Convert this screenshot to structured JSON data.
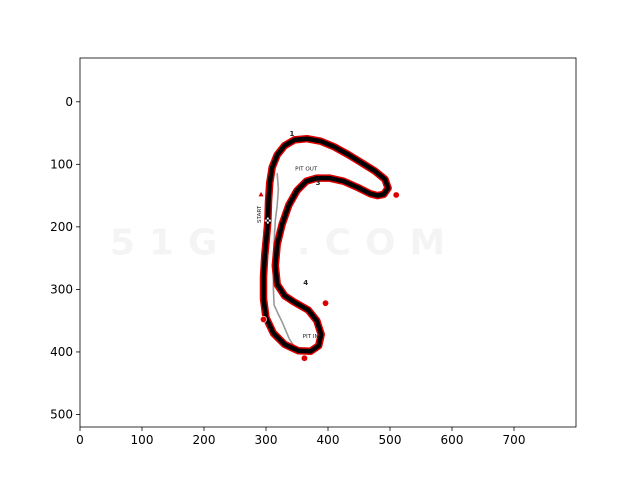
{
  "chart_data": {
    "type": "image",
    "xlim": [
      0,
      800
    ],
    "ylim": [
      520,
      -70
    ],
    "x_ticks": [
      0,
      100,
      200,
      300,
      400,
      500,
      600,
      700
    ],
    "y_ticks": [
      0,
      100,
      200,
      300,
      400,
      500
    ],
    "grid": false,
    "image_content": {
      "watermark_text": "51G 3.COM",
      "track_labels": [
        {
          "text": "1",
          "x": 338,
          "y": 55
        },
        {
          "text": "PIT OUT",
          "x": 347,
          "y": 110
        },
        {
          "text": "3",
          "x": 380,
          "y": 133
        },
        {
          "text": "START",
          "x": 292,
          "y": 180
        },
        {
          "text": "4",
          "x": 360,
          "y": 293
        },
        {
          "text": "PIT IN",
          "x": 359,
          "y": 378
        }
      ],
      "track_centerline": [
        [
          303,
          190
        ],
        [
          301,
          215
        ],
        [
          298,
          245
        ],
        [
          296,
          280
        ],
        [
          296,
          315
        ],
        [
          300,
          345
        ],
        [
          312,
          370
        ],
        [
          330,
          388
        ],
        [
          352,
          398
        ],
        [
          372,
          399
        ],
        [
          385,
          390
        ],
        [
          389,
          372
        ],
        [
          382,
          350
        ],
        [
          368,
          333
        ],
        [
          345,
          320
        ],
        [
          330,
          310
        ],
        [
          318,
          292
        ],
        [
          315,
          262
        ],
        [
          318,
          228
        ],
        [
          326,
          196
        ],
        [
          337,
          165
        ],
        [
          350,
          142
        ],
        [
          365,
          127
        ],
        [
          382,
          122
        ],
        [
          402,
          122
        ],
        [
          425,
          127
        ],
        [
          448,
          137
        ],
        [
          468,
          147
        ],
        [
          480,
          150
        ],
        [
          490,
          148
        ],
        [
          497,
          138
        ],
        [
          492,
          124
        ],
        [
          476,
          111
        ],
        [
          455,
          98
        ],
        [
          432,
          84
        ],
        [
          410,
          72
        ],
        [
          388,
          63
        ],
        [
          366,
          59
        ],
        [
          346,
          61
        ],
        [
          330,
          70
        ],
        [
          318,
          85
        ],
        [
          310,
          105
        ],
        [
          306,
          130
        ],
        [
          304,
          160
        ]
      ],
      "pit_lane": [
        [
          318,
          115
        ],
        [
          320,
          140
        ],
        [
          318,
          165
        ],
        [
          315,
          190
        ],
        [
          313,
          225
        ],
        [
          312,
          265
        ],
        [
          312,
          300
        ],
        [
          313,
          325
        ],
        [
          320,
          340
        ],
        [
          326,
          352
        ],
        [
          332,
          366
        ],
        [
          338,
          380
        ],
        [
          345,
          390
        ]
      ],
      "corner_markers": [
        {
          "x": 510,
          "y": 149
        },
        {
          "x": 396,
          "y": 322
        },
        {
          "x": 296,
          "y": 348
        },
        {
          "x": 362,
          "y": 410
        }
      ],
      "start_finish": {
        "x": 303,
        "y": 190
      },
      "colors": {
        "track": "#000000",
        "kerb": "#dd0000",
        "pit_lane": "#999999",
        "start_arrow": "#dd0000"
      }
    }
  }
}
